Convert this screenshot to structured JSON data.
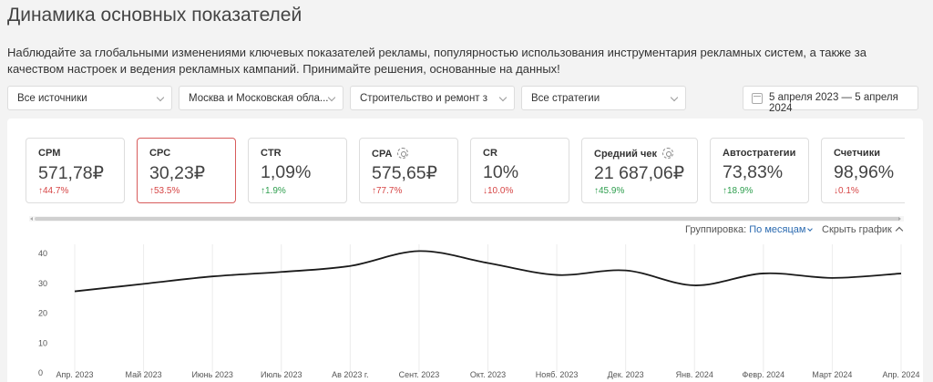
{
  "page": {
    "title": "Динамика основных показателей",
    "description": "Наблюдайте за глобальными изменениями ключевых показателей рекламы, популярностью использования инструментария рекламных систем, а также за качеством настроек и ведения рекламных кампаний. Принимайте решения, основанные на данных!"
  },
  "filters": {
    "source": "Все источники",
    "region": "Москва и Московская обла...",
    "category": "Строительство и ремонт з",
    "strategy": "Все стратегии",
    "date_range": "5 апреля 2023 — 5 апреля 2024"
  },
  "metrics": [
    {
      "name": "CPM",
      "value": "571,78₽",
      "change": "↑44.7%"
    },
    {
      "name": "CPC",
      "value": "30,23₽",
      "change": "↑53.5%"
    },
    {
      "name": "CTR",
      "value": "1,09%",
      "change": "↑1.9%"
    },
    {
      "name": "CPA",
      "value": "575,65₽",
      "change": "↑77.7%"
    },
    {
      "name": "CR",
      "value": "10%",
      "change": "↓10.0%"
    },
    {
      "name": "Средний чек",
      "value": "21 687,06₽",
      "change": "↑45.9%"
    },
    {
      "name": "Автостратегии",
      "value": "73,83%",
      "change": "↑18.9%"
    },
    {
      "name": "Счетчики",
      "value": "98,96%",
      "change": "↓0.1%"
    }
  ],
  "controls": {
    "grouping_label": "Группировка:",
    "grouping_value": "По месяцам",
    "hide_chart": "Скрыть график"
  },
  "colors": {
    "negative": "#d64545",
    "positive": "#2e9e4e",
    "active_border": "#d85c5c",
    "link": "#2b6ab0"
  },
  "chart_data": {
    "type": "line",
    "series_label": "CPC",
    "categories": [
      "Апр. 2023",
      "Май 2023",
      "Июнь 2023",
      "Июль 2023",
      "Ав 2023 г.",
      "Сент. 2023",
      "Окт. 2023",
      "Нояб. 2023",
      "Дек. 2023",
      "Янв. 2024",
      "Февр. 2024",
      "Март 2024",
      "Апр. 2024"
    ],
    "values": [
      27,
      29.5,
      32,
      33.5,
      35.5,
      40.5,
      36.5,
      32.5,
      34,
      29,
      33,
      31.5,
      33
    ],
    "yticks": [
      0,
      10,
      20,
      30,
      40
    ],
    "ylim": [
      0,
      42
    ]
  }
}
